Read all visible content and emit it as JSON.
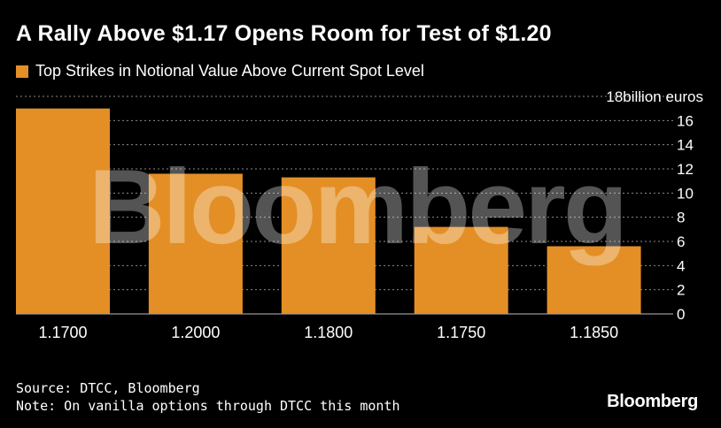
{
  "header": {
    "title": "A Rally Above $1.17 Opens Room for Test of $1.20"
  },
  "footer": {
    "source": "Source: DTCC, Bloomberg",
    "note": "Note: On vanilla options through DTCC this month",
    "brand": "Bloomberg"
  },
  "watermark": "Bloomberg",
  "colors": {
    "bar": "#e38f25",
    "background": "#000000",
    "grid": "#8a8a8a",
    "text": "#ffffff"
  },
  "chart_data": {
    "type": "bar",
    "categories": [
      "1.1700",
      "1.2000",
      "1.1800",
      "1.1750",
      "1.1850"
    ],
    "series": [
      {
        "name": "Top Strikes in Notional Value Above Current Spot Level",
        "values": [
          17.0,
          11.6,
          11.3,
          7.2,
          5.6
        ]
      }
    ],
    "ylim": [
      0,
      18
    ],
    "yticks": [
      0,
      2,
      4,
      6,
      8,
      10,
      12,
      14,
      16,
      18
    ],
    "ytick_labels": [
      "0",
      "2",
      "4",
      "6",
      "8",
      "10",
      "12",
      "14",
      "16",
      "18billion euros"
    ],
    "yaxis_position": "right",
    "grid": true,
    "legend_position": "top-left",
    "title": "A Rally Above $1.17 Opens Room for Test of $1.20",
    "xlabel": "",
    "ylabel": "billion euros"
  }
}
